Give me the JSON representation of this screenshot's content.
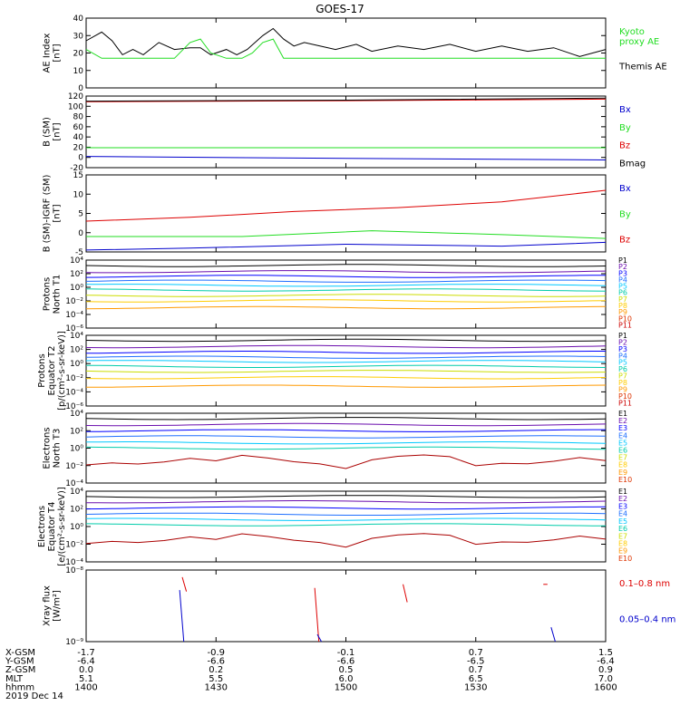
{
  "title": "GOES-17",
  "colors": {
    "black": "#000000",
    "green": "#22dd22",
    "red": "#dd0000",
    "blue": "#0000cc",
    "p1": "#000000",
    "p2": "#6a0dad",
    "p3": "#0000ff",
    "p4": "#1e6fff",
    "p5": "#00c8ff",
    "p6": "#00ccaa",
    "p7": "#ccdd00",
    "p8": "#ffcc00",
    "p9": "#ff9900",
    "p10": "#dd3300",
    "p11": "#cc0000"
  },
  "chart_data": [
    {
      "type": "line",
      "id": "ae",
      "ylabel": "AE Index\n[nT]",
      "ylim": [
        0,
        40
      ],
      "yticks": [
        "0",
        "10",
        "20",
        "30",
        "40"
      ],
      "series": [
        {
          "name": "Themis AE",
          "color": "black",
          "x": [
            0,
            0.03,
            0.05,
            0.07,
            0.09,
            0.11,
            0.14,
            0.17,
            0.2,
            0.22,
            0.24,
            0.27,
            0.29,
            0.31,
            0.34,
            0.36,
            0.38,
            0.4,
            0.42,
            0.45,
            0.48,
            0.52,
            0.55,
            0.6,
            0.65,
            0.7,
            0.75,
            0.8,
            0.85,
            0.9,
            0.95,
            1
          ],
          "y": [
            27,
            32,
            27,
            19,
            22,
            19,
            26,
            22,
            23,
            23,
            19,
            22,
            19,
            22,
            30,
            34,
            28,
            24,
            26,
            24,
            22,
            25,
            21,
            24,
            22,
            25,
            21,
            24,
            21,
            23,
            18,
            22
          ]
        },
        {
          "name": "Kyoto proxy AE",
          "color": "green",
          "x": [
            0,
            0.03,
            0.05,
            0.17,
            0.2,
            0.22,
            0.24,
            0.27,
            0.3,
            0.32,
            0.34,
            0.36,
            0.38,
            1
          ],
          "y": [
            22,
            17,
            17,
            17,
            26,
            28,
            20,
            17,
            17,
            20,
            26,
            28,
            17,
            17
          ]
        }
      ],
      "legend": [
        "Kyoto\nproxy AE",
        "Themis AE"
      ]
    },
    {
      "type": "line",
      "id": "b",
      "ylabel": "B (SM)\n[nT]",
      "ylim": [
        -20,
        120
      ],
      "yticks": [
        "-20",
        "0",
        "20",
        "40",
        "60",
        "80",
        "100",
        "120"
      ],
      "series": [
        {
          "name": "Bx",
          "color": "blue",
          "x": [
            0,
            0.5,
            1
          ],
          "y": [
            2,
            -2,
            -5
          ]
        },
        {
          "name": "By",
          "color": "green",
          "x": [
            0,
            0.5,
            1
          ],
          "y": [
            19,
            19,
            19
          ]
        },
        {
          "name": "Bz",
          "color": "red",
          "x": [
            0,
            0.5,
            1
          ],
          "y": [
            109,
            111,
            114
          ]
        },
        {
          "name": "Bmag",
          "color": "black",
          "x": [
            0,
            0.5,
            1
          ],
          "y": [
            110,
            112,
            116
          ]
        }
      ],
      "legend": [
        "Bx",
        "By",
        "Bz",
        "Bmag"
      ]
    },
    {
      "type": "line",
      "id": "db",
      "ylabel": "B (SM)-IGRF (SM)\n[nT]",
      "ylim": [
        -5,
        15
      ],
      "yticks": [
        "-5",
        "0",
        "5",
        "10",
        "15"
      ],
      "series": [
        {
          "name": "Bx",
          "color": "blue",
          "x": [
            0,
            0.2,
            0.5,
            0.8,
            1
          ],
          "y": [
            -4.5,
            -4,
            -3,
            -3.5,
            -2.5
          ]
        },
        {
          "name": "By",
          "color": "green",
          "x": [
            0,
            0.3,
            0.55,
            0.8,
            1
          ],
          "y": [
            -1,
            -1,
            0.5,
            -0.5,
            -1.5
          ]
        },
        {
          "name": "Bz",
          "color": "red",
          "x": [
            0,
            0.2,
            0.4,
            0.6,
            0.8,
            1
          ],
          "y": [
            3,
            4,
            5.5,
            6.5,
            8,
            11
          ]
        }
      ],
      "legend": [
        "Bx",
        "By",
        "Bz"
      ]
    },
    {
      "type": "line",
      "id": "pn",
      "ylabel": "Protons\nNorth T1",
      "ylim": [
        -6,
        4
      ],
      "log": true,
      "yticks": [
        "10⁻⁶",
        "10⁻⁴",
        "10⁻²",
        "10⁰",
        "10²",
        "10⁴"
      ],
      "levels": [
        3.2,
        2.3,
        1.6,
        0.9,
        0.3,
        -0.4,
        -1.2,
        -2.0,
        -3.0
      ],
      "legend": [
        "P1",
        "P2",
        "P3",
        "P4",
        "P5",
        "P6",
        "P7",
        "P8",
        "P9",
        "P10",
        "P11"
      ]
    },
    {
      "type": "line",
      "id": "pe",
      "ylabel": "Protons\nEquator T2\n[p/(cm²-s-sr-keV)]",
      "ylim": [
        -6,
        4
      ],
      "log": true,
      "yticks": [
        "10⁻⁶",
        "10⁻⁴",
        "10⁻²",
        "10⁰",
        "10²",
        "10⁴"
      ],
      "levels": [
        3.3,
        2.4,
        1.6,
        0.9,
        0.3,
        -0.4,
        -1.1,
        -2.0,
        -3.2
      ],
      "legend": [
        "P1",
        "P2",
        "P3",
        "P4",
        "P5",
        "P6",
        "P7",
        "P8",
        "P9",
        "P10",
        "P11"
      ]
    },
    {
      "type": "line",
      "id": "en",
      "ylabel": "Electrons\nNorth T3",
      "ylim": [
        -4,
        4
      ],
      "log": true,
      "yticks": [
        "10⁻⁴",
        "10⁻²",
        "10⁰",
        "10²",
        "10⁴"
      ],
      "levels": [
        3.4,
        2.7,
        2.0,
        1.3,
        0.6,
        0
      ],
      "legend": [
        "E1",
        "E2",
        "E3",
        "E4",
        "E5",
        "E6",
        "E7",
        "E8",
        "E9",
        "E10"
      ]
    },
    {
      "type": "line",
      "id": "ee",
      "ylabel": "Electrons\nEquator T4\n[e/(cm²-s-sr-keV)]",
      "ylim": [
        -4,
        4
      ],
      "log": true,
      "yticks": [
        "10⁻⁴",
        "10⁻²",
        "10⁰",
        "10²",
        "10⁴"
      ],
      "levels": [
        3.4,
        2.8,
        2.1,
        1.4,
        0.8,
        0.2
      ],
      "legend": [
        "E1",
        "E2",
        "E3",
        "E4",
        "E5",
        "E6",
        "E7",
        "E8",
        "E9",
        "E10"
      ]
    },
    {
      "type": "line",
      "id": "xr",
      "ylabel": "Xray flux\n[W/m²]",
      "ylim": [
        -9,
        -8
      ],
      "log": true,
      "yticks": [
        "10⁻⁹",
        "10⁻⁸"
      ],
      "legend": [
        "0.1–0.8 nm",
        "0.05–0.4 nm"
      ]
    }
  ],
  "xaxis": {
    "rows": [
      {
        "label": "X-GSM",
        "values": [
          "-1.7",
          "-0.9",
          "-0.1",
          "0.7",
          "1.5"
        ]
      },
      {
        "label": "Y-GSM",
        "values": [
          "-6.4",
          "-6.6",
          "-6.6",
          "-6.5",
          "-6.4"
        ]
      },
      {
        "label": "Z-GSM",
        "values": [
          "0.0",
          "0.2",
          "0.5",
          "0.7",
          "0.9"
        ]
      },
      {
        "label": "MLT",
        "values": [
          "5.1",
          "5.5",
          "6.0",
          "6.5",
          "7.0"
        ]
      },
      {
        "label": "hhmm",
        "values": [
          "1400",
          "1430",
          "1500",
          "1530",
          "1600"
        ]
      }
    ],
    "date": "2019 Dec 14"
  }
}
